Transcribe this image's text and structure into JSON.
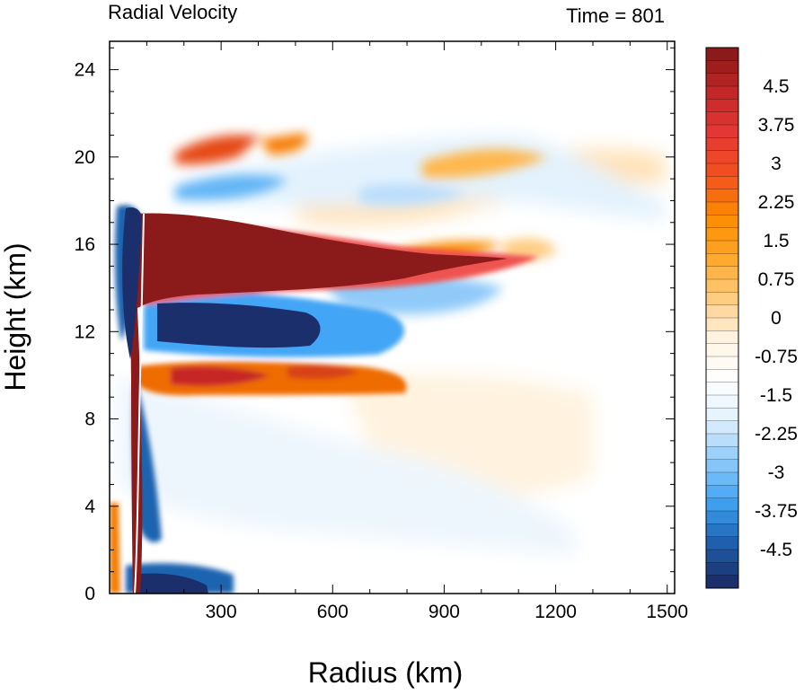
{
  "chart_data": {
    "type": "heatmap",
    "title": "Radial Velocity",
    "subtitle": "Time = 801",
    "xlabel": "Radius (km)",
    "ylabel": "Height (km)",
    "xlim": [
      0,
      1520
    ],
    "ylim": [
      0,
      25.3
    ],
    "x_ticks": [
      300,
      600,
      900,
      1200,
      1500
    ],
    "y_ticks": [
      0,
      4,
      8,
      12,
      16,
      20,
      24
    ],
    "x_tick_labels": [
      "300",
      "600",
      "900",
      "1200",
      "1500"
    ],
    "y_tick_labels": [
      "0",
      "4",
      "8",
      "12",
      "16",
      "20",
      "24"
    ],
    "grid": false,
    "colorbar": {
      "min": -5.25,
      "max": 5.25,
      "step": 0.25,
      "tick_values": [
        4.5,
        3.75,
        3,
        2.25,
        1.5,
        0.75,
        0,
        -0.75,
        -1.5,
        -2.25,
        -3,
        -3.75,
        -4.5
      ],
      "tick_labels": [
        "4.5",
        "3.75",
        "3",
        "2.25",
        "1.5",
        "0.75",
        "0",
        "-0.75",
        "-1.5",
        "-2.25",
        "-3",
        "-3.75",
        "-4.5"
      ],
      "colors_high_to_low": [
        "#8b1a1a",
        "#c62828",
        "#e53935",
        "#f4511e",
        "#fb8c00",
        "#ffa726",
        "#ffcc80",
        "#fff3e0",
        "#ffffff",
        "#e3f2fd",
        "#90caf9",
        "#42a5f5",
        "#1e63b0",
        "#1a2f6b"
      ]
    },
    "features": [
      {
        "label": "upper-level outflow",
        "sign": "positive",
        "r_km": [
          80,
          1080
        ],
        "z_km": [
          13.5,
          17.5
        ],
        "peak_ms": 5.5
      },
      {
        "label": "mid-level inflow",
        "sign": "negative",
        "r_km": [
          100,
          580
        ],
        "z_km": [
          11,
          13
        ],
        "peak_ms": -5.5
      },
      {
        "label": "boundary-layer inflow",
        "sign": "negative",
        "r_km": [
          60,
          260
        ],
        "z_km": [
          0,
          1
        ],
        "peak_ms": -5.5
      },
      {
        "label": "lower outflow layer",
        "sign": "positive",
        "r_km": [
          150,
          700
        ],
        "z_km": [
          9,
          10.5
        ],
        "peak_ms": 3.5
      },
      {
        "label": "stratospheric outflow",
        "sign": "positive",
        "r_km": [
          200,
          380
        ],
        "z_km": [
          19.5,
          21
        ],
        "peak_ms": 3.5
      },
      {
        "label": "outer upper outflow",
        "sign": "positive",
        "r_km": [
          800,
          1250
        ],
        "z_km": [
          18.5,
          21
        ],
        "peak_ms": 2
      }
    ]
  }
}
